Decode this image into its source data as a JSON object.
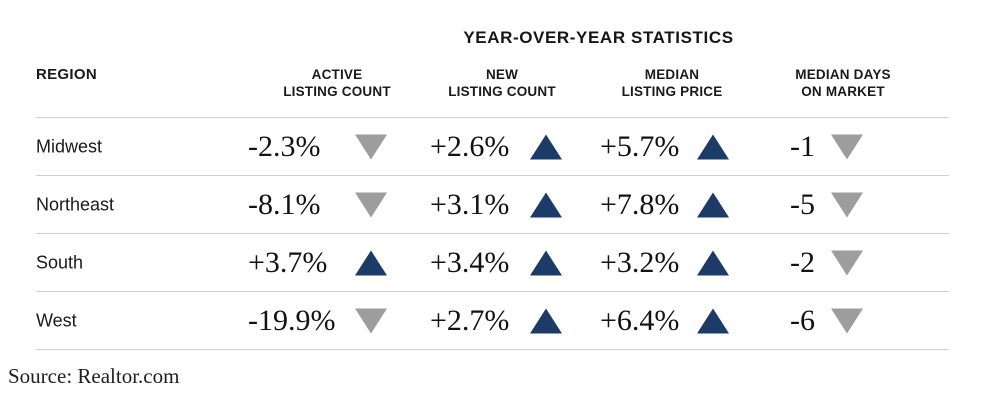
{
  "title": "YEAR-OVER-YEAR STATISTICS",
  "source": "Source: Realtor.com",
  "colors": {
    "up": "#1c3b67",
    "down": "#9d9d9d",
    "line": "#cfcfcf"
  },
  "table": {
    "region_header": "REGION",
    "columns": [
      {
        "line1": "ACTIVE",
        "line2": "LISTING COUNT"
      },
      {
        "line1": "NEW",
        "line2": "LISTING COUNT"
      },
      {
        "line1": "MEDIAN",
        "line2": "LISTING PRICE"
      },
      {
        "line1": "MEDIAN DAYS",
        "line2": "ON MARKET"
      }
    ],
    "rows": [
      {
        "region": "Midwest",
        "cells": [
          {
            "value": "-2.3%",
            "direction": "down"
          },
          {
            "value": "+2.6%",
            "direction": "up"
          },
          {
            "value": "+5.7%",
            "direction": "up"
          },
          {
            "value": "-1",
            "direction": "down"
          }
        ]
      },
      {
        "region": "Northeast",
        "cells": [
          {
            "value": "-8.1%",
            "direction": "down"
          },
          {
            "value": "+3.1%",
            "direction": "up"
          },
          {
            "value": "+7.8%",
            "direction": "up"
          },
          {
            "value": "-5",
            "direction": "down"
          }
        ]
      },
      {
        "region": "South",
        "cells": [
          {
            "value": "+3.7%",
            "direction": "up"
          },
          {
            "value": "+3.4%",
            "direction": "up"
          },
          {
            "value": "+3.2%",
            "direction": "up"
          },
          {
            "value": "-2",
            "direction": "down"
          }
        ]
      },
      {
        "region": "West",
        "cells": [
          {
            "value": "-19.9%",
            "direction": "down"
          },
          {
            "value": "+2.7%",
            "direction": "up"
          },
          {
            "value": "+6.4%",
            "direction": "up"
          },
          {
            "value": "-6",
            "direction": "down"
          }
        ]
      }
    ]
  },
  "chart_data": {
    "type": "table",
    "title": "YEAR-OVER-YEAR STATISTICS",
    "categories": [
      "Midwest",
      "Northeast",
      "South",
      "West"
    ],
    "series": [
      {
        "name": "Active Listing Count",
        "values": [
          "-2.3%",
          "-8.1%",
          "+3.7%",
          "-19.9%"
        ],
        "directions": [
          "down",
          "down",
          "up",
          "down"
        ]
      },
      {
        "name": "New Listing Count",
        "values": [
          "+2.6%",
          "+3.1%",
          "+3.4%",
          "+2.7%"
        ],
        "directions": [
          "up",
          "up",
          "up",
          "up"
        ]
      },
      {
        "name": "Median Listing Price",
        "values": [
          "+5.7%",
          "+7.8%",
          "+3.2%",
          "+6.4%"
        ],
        "directions": [
          "up",
          "up",
          "up",
          "up"
        ]
      },
      {
        "name": "Median Days on Market",
        "values": [
          "-1",
          "-5",
          "-2",
          "-6"
        ],
        "directions": [
          "down",
          "down",
          "down",
          "down"
        ]
      }
    ],
    "source": "Source: Realtor.com"
  }
}
